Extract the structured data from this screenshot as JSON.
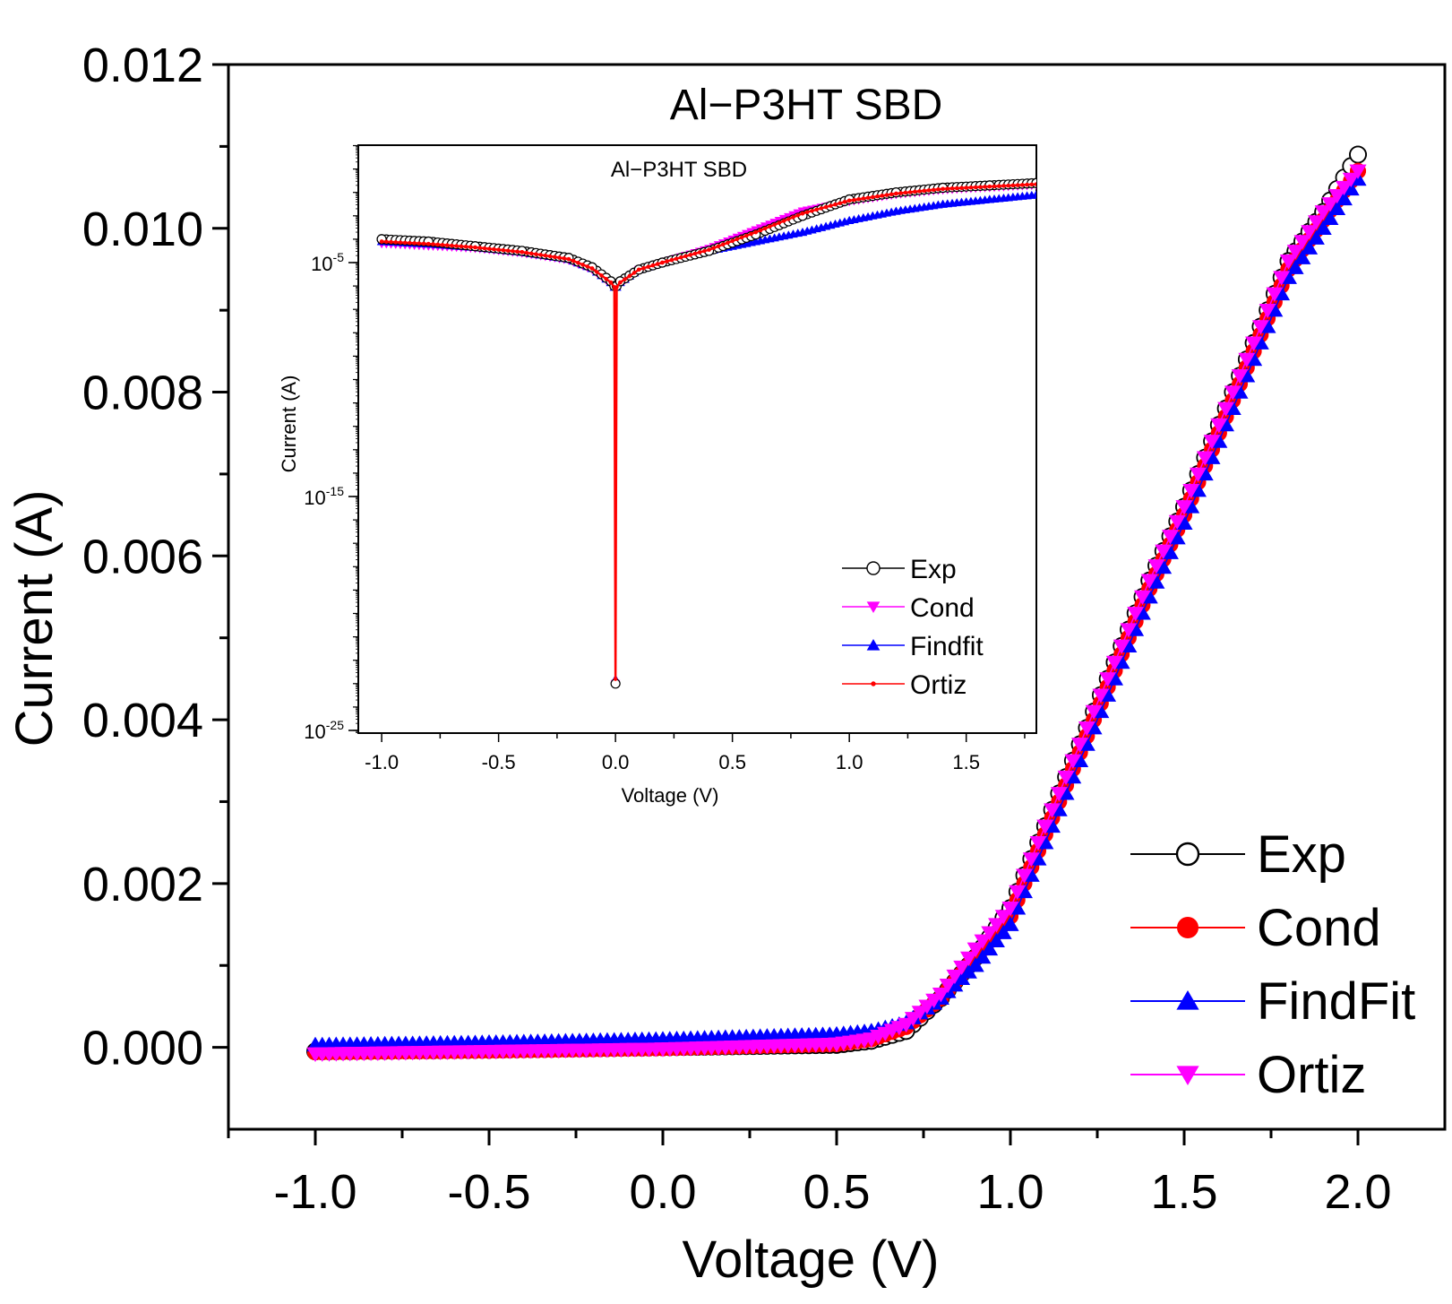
{
  "chart_data": [
    {
      "type": "scatter",
      "title": "Al−P3HT SBD",
      "xlabel": "Voltage (V)",
      "ylabel": "Current (A)",
      "xlim": [
        -1.25,
        2.25
      ],
      "ylim": [
        -0.001,
        0.012
      ],
      "xticks": [
        -1.0,
        -0.5,
        0.0,
        0.5,
        1.0,
        1.5,
        2.0
      ],
      "xtick_labels": [
        "-1.0",
        "-0.5",
        "0.0",
        "0.5",
        "1.0",
        "1.5",
        "2.0"
      ],
      "yticks": [
        0.0,
        0.002,
        0.004,
        0.006,
        0.008,
        0.01,
        0.012
      ],
      "ytick_labels": [
        "0.000",
        "0.002",
        "0.004",
        "0.006",
        "0.008",
        "0.010",
        "0.012"
      ],
      "legend_position": "bottom-right",
      "series": [
        {
          "name": "Exp",
          "color": "#000000",
          "marker": "open-circle",
          "x": [
            -1.0,
            -0.5,
            0.0,
            0.5,
            0.6,
            0.7,
            0.8,
            0.9,
            1.0,
            1.1,
            1.2,
            1.3,
            1.4,
            1.5,
            1.6,
            1.7,
            1.8,
            1.9,
            2.0
          ],
          "y": [
            -5e-05,
            -3e-05,
            0.0,
            3e-05,
            8e-05,
            0.0002,
            0.0006,
            0.0011,
            0.0017,
            0.0027,
            0.0037,
            0.0047,
            0.0057,
            0.0066,
            0.0076,
            0.0086,
            0.0096,
            0.0102,
            0.0109
          ]
        },
        {
          "name": "Cond",
          "color": "#ff0000",
          "marker": "filled-circle",
          "x": [
            -1.0,
            -0.5,
            0.0,
            0.5,
            0.6,
            0.7,
            0.8,
            0.9,
            1.0,
            1.1,
            1.2,
            1.3,
            1.4,
            1.5,
            1.6,
            1.7,
            1.8,
            1.9,
            2.0
          ],
          "y": [
            -6e-05,
            -4e-05,
            -1e-05,
            4e-05,
            0.0001,
            0.00025,
            0.0006,
            0.0011,
            0.0016,
            0.0026,
            0.0036,
            0.0046,
            0.0056,
            0.0065,
            0.0075,
            0.0085,
            0.0095,
            0.0101,
            0.0107
          ]
        },
        {
          "name": "FindFit",
          "color": "#0000ff",
          "marker": "triangle-up",
          "x": [
            -1.0,
            -0.5,
            0.0,
            0.5,
            0.6,
            0.7,
            0.8,
            0.9,
            1.0,
            1.1,
            1.2,
            1.3,
            1.4,
            1.5,
            1.6,
            1.7,
            1.8,
            1.9,
            2.0
          ],
          "y": [
            3e-05,
            6e-05,
            0.0001,
            0.00016,
            0.0002,
            0.0003,
            0.0006,
            0.001,
            0.0015,
            0.0025,
            0.0035,
            0.0045,
            0.0055,
            0.0064,
            0.0074,
            0.0084,
            0.0094,
            0.01,
            0.0106
          ]
        },
        {
          "name": "Ortiz",
          "color": "#ff00ff",
          "marker": "triangle-down",
          "x": [
            -1.0,
            -0.5,
            0.0,
            0.5,
            0.6,
            0.7,
            0.8,
            0.9,
            1.0,
            1.1,
            1.2,
            1.3,
            1.4,
            1.5,
            1.6,
            1.7,
            1.8,
            1.9,
            2.0
          ],
          "y": [
            -8e-05,
            -5e-05,
            -2e-05,
            4e-05,
            0.0001,
            0.00028,
            0.00065,
            0.0012,
            0.0017,
            0.0027,
            0.0037,
            0.0047,
            0.0057,
            0.0066,
            0.0076,
            0.0086,
            0.0096,
            0.0102,
            0.0107
          ]
        }
      ]
    },
    {
      "type": "scatter",
      "title": "Al−P3HT SBD",
      "xlabel": "Voltage (V)",
      "ylabel": "Current (A)",
      "yscale": "log",
      "xlim": [
        -1.1,
        1.8
      ],
      "ylim_exp": [
        -25,
        0
      ],
      "xticks": [
        -1.0,
        -0.5,
        0.0,
        0.5,
        1.0,
        1.5
      ],
      "xtick_labels": [
        "-1.0",
        "-0.5",
        "0.0",
        "0.5",
        "1.0",
        "1.5"
      ],
      "ytick_exps": [
        -5,
        -15,
        -25
      ],
      "ytick_labels": [
        {
          "base": "10",
          "exp": "-5"
        },
        {
          "base": "10",
          "exp": "-15"
        },
        {
          "base": "10",
          "exp": "-25"
        }
      ],
      "legend_position": "bottom-right",
      "series": [
        {
          "name": "Exp",
          "color": "#000000",
          "marker": "open-circle",
          "x": [
            -1.0,
            -0.8,
            -0.6,
            -0.4,
            -0.2,
            -0.1,
            -0.02,
            -0.005,
            0.0,
            0.005,
            0.02,
            0.1,
            0.2,
            0.4,
            0.6,
            0.8,
            1.0,
            1.2,
            1.4,
            1.6,
            1.8
          ],
          "log10_y": [
            -4.0,
            -4.1,
            -4.3,
            -4.5,
            -4.8,
            -5.2,
            -5.8,
            -6.0,
            -23.0,
            -6.0,
            -5.8,
            -5.3,
            -5.0,
            -4.5,
            -3.8,
            -3.0,
            -2.3,
            -2.0,
            -1.8,
            -1.7,
            -1.6
          ]
        },
        {
          "name": "Cond",
          "color": "#ff00ff",
          "marker": "triangle-down",
          "x": [
            -1.0,
            -0.8,
            -0.6,
            -0.4,
            -0.2,
            -0.1,
            -0.02,
            -0.005,
            0.0,
            0.005,
            0.02,
            0.1,
            0.2,
            0.4,
            0.6,
            0.8,
            1.0,
            1.2,
            1.4,
            1.6,
            1.8
          ],
          "log10_y": [
            -4.2,
            -4.3,
            -4.4,
            -4.6,
            -4.9,
            -5.3,
            -5.9,
            -6.1,
            -23.0,
            -6.1,
            -5.9,
            -5.3,
            -5.0,
            -4.4,
            -3.6,
            -2.8,
            -2.4,
            -2.1,
            -1.9,
            -1.8,
            -1.7
          ]
        },
        {
          "name": "Findfit",
          "color": "#0000ff",
          "marker": "triangle-up",
          "x": [
            -1.0,
            -0.8,
            -0.6,
            -0.4,
            -0.2,
            -0.1,
            -0.02,
            -0.005,
            0.0,
            0.005,
            0.02,
            0.1,
            0.2,
            0.4,
            0.6,
            0.8,
            1.0,
            1.2,
            1.4,
            1.6,
            1.8
          ],
          "log10_y": [
            -4.1,
            -4.2,
            -4.35,
            -4.55,
            -4.85,
            -5.25,
            -5.85,
            -6.05,
            -22.8,
            -6.05,
            -5.85,
            -5.3,
            -5.0,
            -4.5,
            -4.1,
            -3.7,
            -3.2,
            -2.8,
            -2.5,
            -2.3,
            -2.1
          ]
        },
        {
          "name": "Ortiz",
          "color": "#ff0000",
          "marker": "small-dot",
          "x": [
            -1.0,
            -0.8,
            -0.6,
            -0.4,
            -0.2,
            -0.1,
            -0.02,
            -0.005,
            0.0,
            0.005,
            0.02,
            0.1,
            0.2,
            0.4,
            0.6,
            0.8,
            1.0,
            1.2,
            1.4,
            1.6,
            1.8
          ],
          "log10_y": [
            -4.1,
            -4.2,
            -4.35,
            -4.55,
            -4.85,
            -5.25,
            -5.85,
            -6.05,
            -22.8,
            -6.05,
            -5.85,
            -5.3,
            -5.0,
            -4.45,
            -3.7,
            -2.9,
            -2.35,
            -2.05,
            -1.85,
            -1.75,
            -1.65
          ]
        }
      ]
    }
  ]
}
